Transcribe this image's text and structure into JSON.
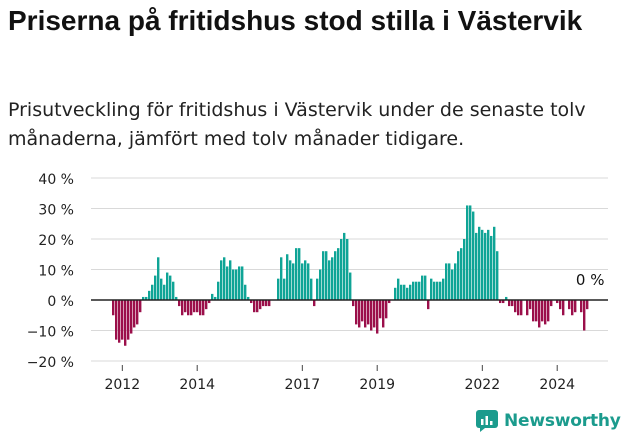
{
  "title": "Priserna på fritidshus stod stilla i Västervik",
  "subtitle": "Prisutveckling för fritidshus i Västervik under de senaste tolv månaderna, jämfört med tolv månader tidigare.",
  "brand": {
    "name": "Newsworthy",
    "icon": "newsworthy-logo-icon",
    "color": "#1b9b8d"
  },
  "colors": {
    "positive": "#0fa496",
    "negative": "#9b0f4a",
    "axis": "#222222",
    "grid": "#d9d9d9"
  },
  "chart_data": {
    "type": "bar",
    "ylabel": "",
    "xlabel": "",
    "ylim": [
      -20,
      40
    ],
    "yticks": [
      -20,
      -10,
      0,
      10,
      20,
      30,
      40
    ],
    "ytick_labels": [
      "−20 %",
      "−10 %",
      "0 %",
      "10 %",
      "20 %",
      "30 %",
      "40 %"
    ],
    "xtick_labels": [
      "2012",
      "2014",
      "2017",
      "2019",
      "2022",
      "2024"
    ],
    "xtick_positions": [
      2012.17,
      2014.25,
      2017.17,
      2019.25,
      2022.17,
      2024.25
    ],
    "grid": true,
    "last_value_label": "0 %",
    "x_start": "2011-12",
    "x_step": "month",
    "values": [
      -5,
      -13,
      -14,
      -13,
      -15,
      -13,
      -11,
      -9,
      -8,
      -4,
      1,
      1,
      3,
      5,
      8,
      14,
      7,
      5,
      9,
      8,
      6,
      1,
      -2,
      -5,
      -4,
      -5,
      -5,
      -4,
      -4,
      -5,
      -5,
      -3,
      -1,
      2,
      1,
      6,
      13,
      14,
      11,
      13,
      10,
      10,
      11,
      11,
      5,
      1,
      -1,
      -4,
      -4,
      -3,
      -2,
      -2,
      -2,
      0,
      0,
      7,
      14,
      7,
      15,
      13,
      12,
      17,
      17,
      12,
      13,
      12,
      7,
      -2,
      7,
      10,
      16,
      16,
      13,
      14,
      16,
      17,
      20,
      22,
      20,
      9,
      -2,
      -8,
      -9,
      -7,
      -9,
      -8,
      -10,
      -9,
      -11,
      -6,
      -9,
      -6,
      -1,
      0,
      4,
      7,
      5,
      5,
      4,
      5,
      6,
      6,
      6,
      8,
      8,
      -3,
      7,
      6,
      6,
      6,
      7,
      12,
      12,
      10,
      12,
      16,
      17,
      20,
      31,
      31,
      29,
      22,
      24,
      23,
      22,
      23,
      21,
      24,
      16,
      -1,
      -1,
      1,
      -2,
      -2,
      -4,
      -5,
      -5,
      0,
      -5,
      -3,
      -7,
      -7,
      -9,
      -7,
      -8,
      -7,
      -2,
      0,
      -1,
      -3,
      -5,
      0,
      -3,
      -5,
      -4,
      0,
      -4,
      -10,
      -3,
      0
    ],
    "series": [
      {
        "values_ref": "values"
      }
    ]
  }
}
